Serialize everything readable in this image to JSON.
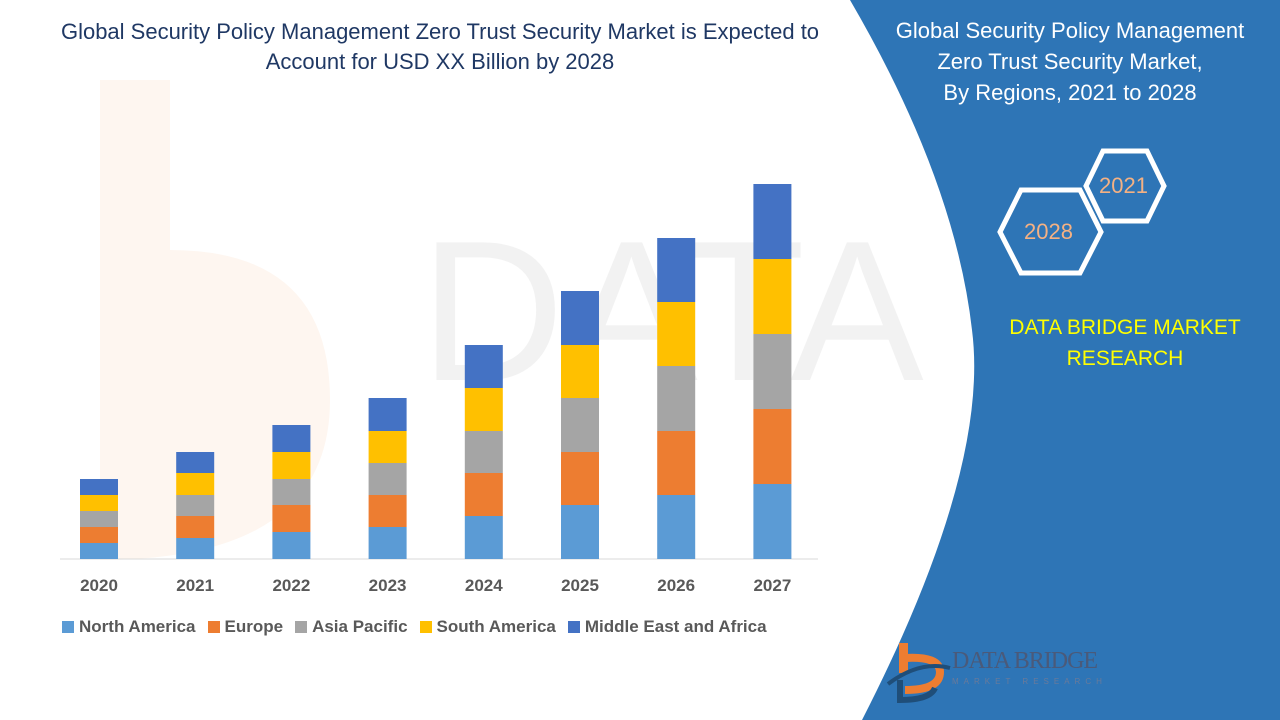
{
  "title": "Global Security Policy Management Zero Trust Security Market is Expected to Account for USD XX Billion by 2028",
  "side_panel": {
    "title_lines": [
      "Global Security Policy Management",
      "Zero Trust Security Market,",
      "By Regions, 2021 to 2028"
    ],
    "hex_labels": [
      "2021",
      "2028"
    ],
    "brand_lines": [
      "DATA BRIDGE MARKET",
      "RESEARCH"
    ],
    "logo_text": "DATA BRIDGE",
    "logo_sub": "MARKET RESEARCH"
  },
  "colors": {
    "panel": "#2e75b6",
    "brand": "#ffff00",
    "hex_text": "#f4b183"
  },
  "chart_data": {
    "type": "bar",
    "stacked": true,
    "title": "Global Security Policy Management Zero Trust Security Market is Expected to Account for USD XX Billion by 2028",
    "xlabel": "",
    "ylabel": "",
    "y_axis_shown": false,
    "grid": false,
    "legend_position": "bottom",
    "categories": [
      "2020",
      "2021",
      "2022",
      "2023",
      "2024",
      "2025",
      "2026",
      "2027"
    ],
    "ylim": [
      0,
      380
    ],
    "series": [
      {
        "name": "North America",
        "color": "#5b9bd5",
        "values": [
          16,
          21,
          27,
          32,
          43,
          54,
          64,
          75
        ]
      },
      {
        "name": "Europe",
        "color": "#ed7d31",
        "values": [
          16,
          22,
          27,
          32,
          43,
          53,
          64,
          75
        ]
      },
      {
        "name": "Asia Pacific",
        "color": "#a5a5a5",
        "values": [
          16,
          21,
          26,
          32,
          42,
          54,
          65,
          75
        ]
      },
      {
        "name": "South America",
        "color": "#ffc000",
        "values": [
          16,
          22,
          27,
          32,
          43,
          53,
          64,
          75
        ]
      },
      {
        "name": "Middle East and Africa",
        "color": "#4472c4",
        "values": [
          16,
          21,
          27,
          33,
          43,
          54,
          64,
          75
        ]
      }
    ]
  }
}
